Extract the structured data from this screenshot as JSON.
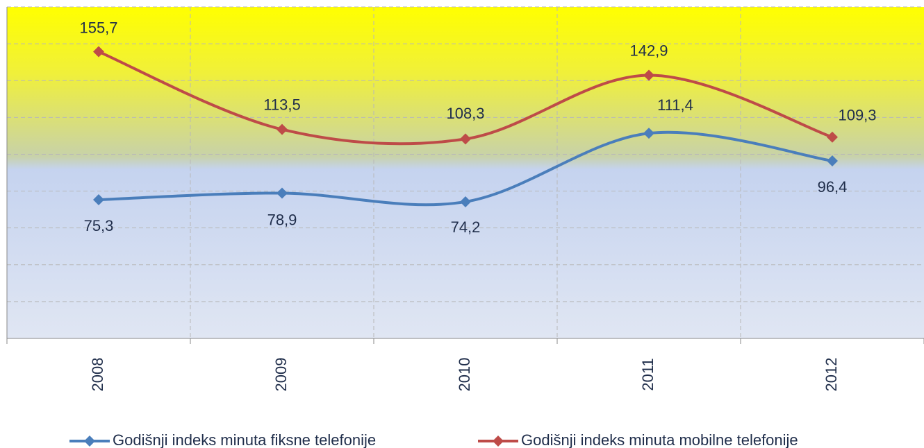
{
  "chart_data": {
    "type": "line",
    "categories": [
      "2008",
      "2009",
      "2010",
      "2011",
      "2012"
    ],
    "series": [
      {
        "name": "Godišnji indeks minuta fiksne telefonije",
        "color": "#4a7ebb",
        "values": [
          75.3,
          78.9,
          74.2,
          111.4,
          96.4
        ],
        "value_labels": [
          "75,3",
          "78,9",
          "74,2",
          "111,4",
          "96,4"
        ]
      },
      {
        "name": "Godišnji indeks minuta mobilne telefonije",
        "color": "#be4b48",
        "values": [
          155.7,
          113.5,
          108.3,
          142.9,
          109.3
        ],
        "value_labels": [
          "155,7",
          "113,5",
          "108,3",
          "142,9",
          "109,3"
        ]
      }
    ],
    "ylim": [
      0,
      180
    ],
    "yticks": [
      0,
      20,
      40,
      60,
      80,
      100,
      120,
      140,
      160,
      180
    ],
    "grid": true,
    "legend": "bottom"
  }
}
